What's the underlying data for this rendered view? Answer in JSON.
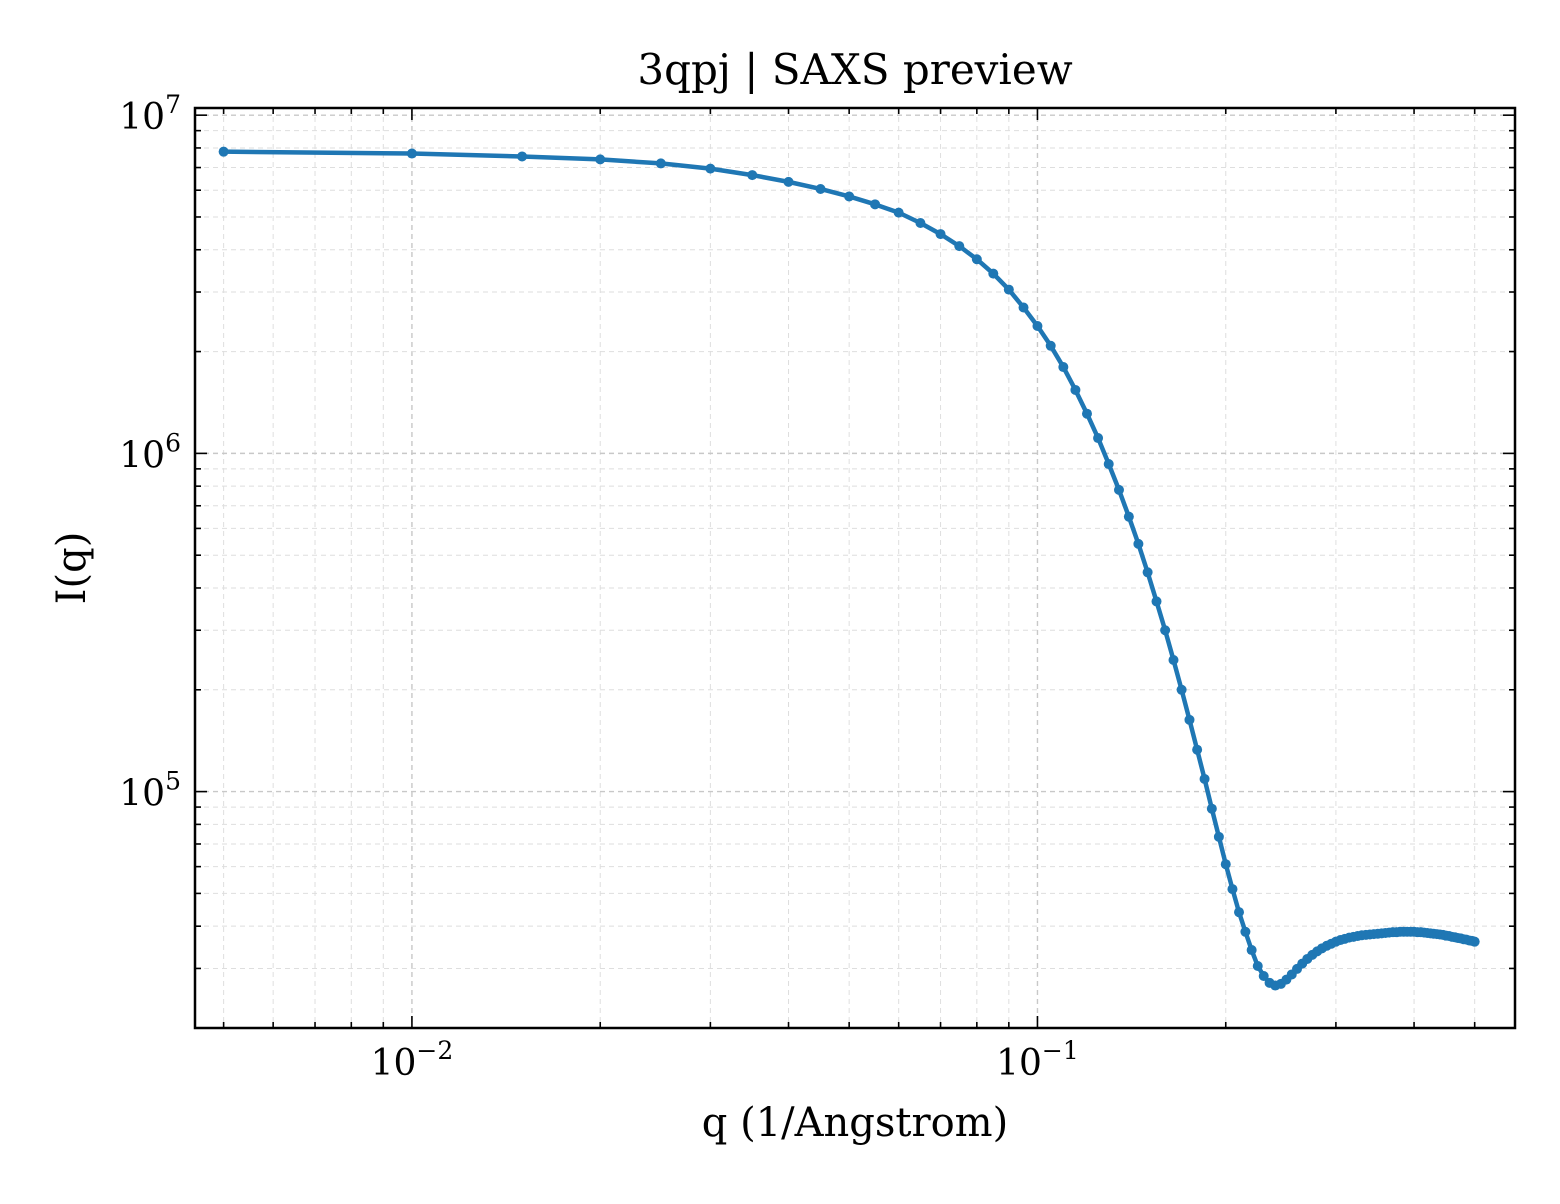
{
  "chart_data": {
    "type": "line",
    "title": "3qpj | SAXS preview",
    "xlabel": "q (1/Angstrom)",
    "ylabel": "I(q)",
    "x_scale": "log",
    "y_scale": "log",
    "xlim": [
      0.0045,
      0.58
    ],
    "ylim": [
      20000,
      10500000
    ],
    "grid": true,
    "line_color": "#1f77b4",
    "x_ticks": [
      {
        "value": 0.01,
        "base": "10",
        "exp": "−2"
      },
      {
        "value": 0.1,
        "base": "10",
        "exp": "−1"
      }
    ],
    "y_ticks": [
      {
        "value": 100000,
        "base": "10",
        "exp": "5"
      },
      {
        "value": 1000000,
        "base": "10",
        "exp": "6"
      },
      {
        "value": 10000000,
        "base": "10",
        "exp": "7"
      }
    ],
    "series": [
      {
        "x": [
          0.005,
          0.01,
          0.015,
          0.02,
          0.025,
          0.03,
          0.035,
          0.04,
          0.045,
          0.05,
          0.055,
          0.06,
          0.065,
          0.07,
          0.075,
          0.08,
          0.085,
          0.09,
          0.095,
          0.1,
          0.105,
          0.11,
          0.115,
          0.12,
          0.125,
          0.13,
          0.135,
          0.14,
          0.145,
          0.15,
          0.155,
          0.16,
          0.165,
          0.17,
          0.175,
          0.18,
          0.185,
          0.19,
          0.195,
          0.2,
          0.205,
          0.21,
          0.215,
          0.22,
          0.225,
          0.23,
          0.235,
          0.24,
          0.245,
          0.25,
          0.255,
          0.26,
          0.265,
          0.27,
          0.275,
          0.28,
          0.285,
          0.29,
          0.295,
          0.3,
          0.305,
          0.31,
          0.315,
          0.32,
          0.325,
          0.33,
          0.335,
          0.34,
          0.345,
          0.35,
          0.355,
          0.36,
          0.365,
          0.37,
          0.375,
          0.38,
          0.385,
          0.39,
          0.395,
          0.4,
          0.405,
          0.41,
          0.415,
          0.42,
          0.425,
          0.43,
          0.435,
          0.44,
          0.445,
          0.45,
          0.455,
          0.46,
          0.465,
          0.47,
          0.475,
          0.48,
          0.485,
          0.49,
          0.495,
          0.5
        ],
        "y": [
          7800000,
          7700000,
          7550000,
          7400000,
          7200000,
          6950000,
          6650000,
          6350000,
          6050000,
          5750000,
          5450000,
          5150000,
          4800000,
          4450000,
          4100000,
          3750000,
          3400000,
          3050000,
          2700000,
          2380000,
          2080000,
          1800000,
          1540000,
          1310000,
          1110000,
          930000,
          780000,
          650000,
          540000,
          445000,
          365000,
          300000,
          245000,
          200000,
          163000,
          133000,
          109000,
          89000,
          73500,
          61000,
          51500,
          44000,
          38500,
          34000,
          30500,
          28500,
          27200,
          26700,
          27000,
          27800,
          28800,
          29900,
          31000,
          32000,
          32900,
          33700,
          34400,
          35000,
          35500,
          36000,
          36400,
          36700,
          37000,
          37200,
          37400,
          37600,
          37700,
          37800,
          37900,
          38000,
          38100,
          38200,
          38300,
          38400,
          38400,
          38500,
          38500,
          38500,
          38500,
          38500,
          38400,
          38400,
          38300,
          38200,
          38100,
          38000,
          37900,
          37800,
          37700,
          37500,
          37400,
          37200,
          37100,
          36900,
          36800,
          36600,
          36500,
          36300,
          36200,
          36000
        ]
      }
    ]
  }
}
